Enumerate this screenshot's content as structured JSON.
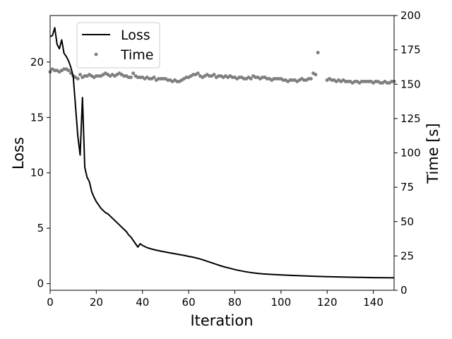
{
  "chart_data": {
    "type": "line",
    "title": "",
    "xlabel": "Iteration",
    "ylabel": "Loss",
    "y2label": "Time [s]",
    "xlim": [
      0,
      149
    ],
    "ylim": [
      -0.6,
      24.2
    ],
    "y2lim": [
      0,
      200
    ],
    "x_ticks": [
      0,
      20,
      40,
      60,
      80,
      100,
      120,
      140
    ],
    "y_ticks": [
      0,
      5,
      10,
      15,
      20
    ],
    "y2_ticks": [
      0,
      25,
      50,
      75,
      100,
      125,
      150,
      175,
      200
    ],
    "legend": {
      "position": "top-left",
      "entries": [
        "Loss",
        "Time"
      ]
    },
    "colors": {
      "loss": "#000000",
      "time": "#808080",
      "axes": "#000000"
    },
    "series": [
      {
        "name": "Loss",
        "axis": "left",
        "style": "line",
        "points": [
          [
            0,
            22.3
          ],
          [
            1,
            22.4
          ],
          [
            2,
            23.1
          ],
          [
            3,
            21.6
          ],
          [
            4,
            21.2
          ],
          [
            5,
            22.0
          ],
          [
            6,
            20.8
          ],
          [
            7,
            20.5
          ],
          [
            8,
            20.1
          ],
          [
            9,
            19.5
          ],
          [
            10,
            18.7
          ],
          [
            11,
            16.0
          ],
          [
            12,
            13.3
          ],
          [
            13,
            11.6
          ],
          [
            14,
            16.8
          ],
          [
            15,
            10.5
          ],
          [
            16,
            9.6
          ],
          [
            17,
            9.2
          ],
          [
            18,
            8.3
          ],
          [
            19,
            7.8
          ],
          [
            20,
            7.4
          ],
          [
            21,
            7.1
          ],
          [
            22,
            6.8
          ],
          [
            23,
            6.6
          ],
          [
            24,
            6.4
          ],
          [
            25,
            6.3
          ],
          [
            26,
            6.1
          ],
          [
            27,
            5.9
          ],
          [
            28,
            5.7
          ],
          [
            29,
            5.5
          ],
          [
            30,
            5.3
          ],
          [
            31,
            5.1
          ],
          [
            32,
            4.9
          ],
          [
            33,
            4.7
          ],
          [
            34,
            4.4
          ],
          [
            35,
            4.2
          ],
          [
            36,
            3.9
          ],
          [
            37,
            3.6
          ],
          [
            38,
            3.3
          ],
          [
            39,
            3.6
          ],
          [
            40,
            3.45
          ],
          [
            42,
            3.25
          ],
          [
            44,
            3.12
          ],
          [
            46,
            3.02
          ],
          [
            48,
            2.93
          ],
          [
            50,
            2.85
          ],
          [
            52,
            2.77
          ],
          [
            54,
            2.7
          ],
          [
            56,
            2.62
          ],
          [
            58,
            2.55
          ],
          [
            60,
            2.46
          ],
          [
            62,
            2.38
          ],
          [
            64,
            2.28
          ],
          [
            66,
            2.16
          ],
          [
            68,
            2.02
          ],
          [
            70,
            1.88
          ],
          [
            72,
            1.74
          ],
          [
            74,
            1.6
          ],
          [
            76,
            1.48
          ],
          [
            78,
            1.38
          ],
          [
            80,
            1.27
          ],
          [
            82,
            1.18
          ],
          [
            84,
            1.1
          ],
          [
            86,
            1.03
          ],
          [
            88,
            0.97
          ],
          [
            90,
            0.92
          ],
          [
            92,
            0.88
          ],
          [
            95,
            0.84
          ],
          [
            100,
            0.79
          ],
          [
            105,
            0.74
          ],
          [
            110,
            0.7
          ],
          [
            115,
            0.66
          ],
          [
            120,
            0.63
          ],
          [
            125,
            0.6
          ],
          [
            130,
            0.58
          ],
          [
            135,
            0.56
          ],
          [
            140,
            0.54
          ],
          [
            145,
            0.53
          ],
          [
            149,
            0.52
          ]
        ]
      },
      {
        "name": "Time",
        "axis": "right",
        "style": "markers",
        "points": [
          [
            0,
            159
          ],
          [
            1,
            161
          ],
          [
            2,
            160
          ],
          [
            3,
            160
          ],
          [
            4,
            159
          ],
          [
            5,
            160
          ],
          [
            6,
            161
          ],
          [
            7,
            161
          ],
          [
            8,
            160
          ],
          [
            9,
            158
          ],
          [
            10,
            156
          ],
          [
            11,
            155
          ],
          [
            12,
            154
          ],
          [
            13,
            157
          ],
          [
            14,
            155
          ],
          [
            15,
            156
          ],
          [
            16,
            156
          ],
          [
            17,
            157
          ],
          [
            18,
            156
          ],
          [
            19,
            155
          ],
          [
            20,
            156
          ],
          [
            21,
            156
          ],
          [
            22,
            156
          ],
          [
            23,
            157
          ],
          [
            24,
            158
          ],
          [
            25,
            157
          ],
          [
            26,
            156
          ],
          [
            27,
            157
          ],
          [
            28,
            156
          ],
          [
            29,
            157
          ],
          [
            30,
            158
          ],
          [
            31,
            157
          ],
          [
            32,
            156
          ],
          [
            33,
            156
          ],
          [
            34,
            155
          ],
          [
            35,
            155
          ],
          [
            36,
            158
          ],
          [
            37,
            156
          ],
          [
            38,
            155
          ],
          [
            39,
            155
          ],
          [
            40,
            155
          ],
          [
            41,
            154
          ],
          [
            42,
            155
          ],
          [
            43,
            154
          ],
          [
            44,
            154
          ],
          [
            45,
            155
          ],
          [
            46,
            153
          ],
          [
            47,
            154
          ],
          [
            48,
            154
          ],
          [
            49,
            154
          ],
          [
            50,
            154
          ],
          [
            51,
            153
          ],
          [
            52,
            153
          ],
          [
            53,
            152
          ],
          [
            54,
            153
          ],
          [
            55,
            152
          ],
          [
            56,
            152
          ],
          [
            57,
            153
          ],
          [
            58,
            154
          ],
          [
            59,
            155
          ],
          [
            60,
            155
          ],
          [
            61,
            156
          ],
          [
            62,
            157
          ],
          [
            63,
            157
          ],
          [
            64,
            158
          ],
          [
            65,
            156
          ],
          [
            66,
            155
          ],
          [
            67,
            156
          ],
          [
            68,
            157
          ],
          [
            69,
            156
          ],
          [
            70,
            156
          ],
          [
            71,
            157
          ],
          [
            72,
            155
          ],
          [
            73,
            156
          ],
          [
            74,
            156
          ],
          [
            75,
            155
          ],
          [
            76,
            156
          ],
          [
            77,
            155
          ],
          [
            78,
            156
          ],
          [
            79,
            155
          ],
          [
            80,
            155
          ],
          [
            81,
            154
          ],
          [
            82,
            155
          ],
          [
            83,
            155
          ],
          [
            84,
            154
          ],
          [
            85,
            154
          ],
          [
            86,
            155
          ],
          [
            87,
            154
          ],
          [
            88,
            156
          ],
          [
            89,
            155
          ],
          [
            90,
            155
          ],
          [
            91,
            154
          ],
          [
            92,
            155
          ],
          [
            93,
            155
          ],
          [
            94,
            154
          ],
          [
            95,
            154
          ],
          [
            96,
            153
          ],
          [
            97,
            154
          ],
          [
            98,
            154
          ],
          [
            99,
            154
          ],
          [
            100,
            154
          ],
          [
            101,
            153
          ],
          [
            102,
            153
          ],
          [
            103,
            152
          ],
          [
            104,
            153
          ],
          [
            105,
            153
          ],
          [
            106,
            153
          ],
          [
            107,
            152
          ],
          [
            108,
            153
          ],
          [
            109,
            154
          ],
          [
            110,
            153
          ],
          [
            111,
            153
          ],
          [
            112,
            154
          ],
          [
            113,
            154
          ],
          [
            114,
            158
          ],
          [
            115,
            157
          ],
          [
            116,
            173
          ],
          [
            120,
            153
          ],
          [
            121,
            154
          ],
          [
            122,
            153
          ],
          [
            123,
            153
          ],
          [
            124,
            152
          ],
          [
            125,
            153
          ],
          [
            126,
            152
          ],
          [
            127,
            153
          ],
          [
            128,
            152
          ],
          [
            129,
            152
          ],
          [
            130,
            152
          ],
          [
            131,
            151
          ],
          [
            132,
            152
          ],
          [
            133,
            152
          ],
          [
            134,
            151
          ],
          [
            135,
            152
          ],
          [
            136,
            152
          ],
          [
            137,
            152
          ],
          [
            138,
            152
          ],
          [
            139,
            152
          ],
          [
            140,
            151
          ],
          [
            141,
            152
          ],
          [
            142,
            152
          ],
          [
            143,
            151
          ],
          [
            144,
            151
          ],
          [
            145,
            152
          ],
          [
            146,
            151
          ],
          [
            147,
            151
          ],
          [
            148,
            152
          ],
          [
            149,
            152
          ]
        ]
      }
    ]
  }
}
